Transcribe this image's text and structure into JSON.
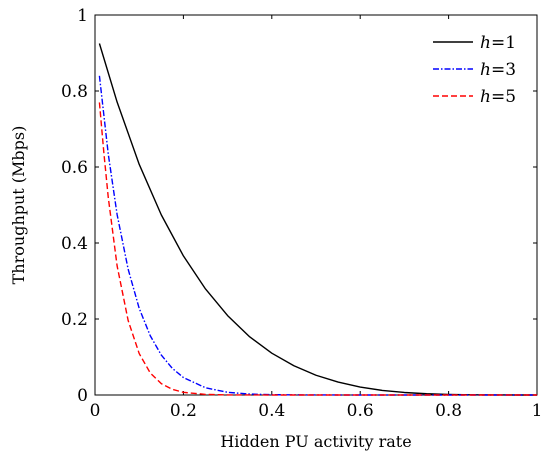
{
  "chart_data": {
    "type": "line",
    "title": "",
    "xlabel": "Hidden PU activity rate",
    "ylabel": "Throughput (Mbps)",
    "xlim": [
      0,
      1
    ],
    "ylim": [
      0,
      1
    ],
    "xticks": [
      0,
      0.2,
      0.4,
      0.6,
      0.8,
      1
    ],
    "xtick_labels": [
      "0",
      "0.2",
      "0.4",
      "0.6",
      "0.8",
      "1"
    ],
    "yticks": [
      0,
      0.2,
      0.4,
      0.6,
      0.8,
      1
    ],
    "ytick_labels": [
      "0",
      "0.2",
      "0.4",
      "0.6",
      "0.8",
      "1"
    ],
    "grid": false,
    "legend_position": "top-right",
    "series": [
      {
        "name": "h=1",
        "legend_var": "h",
        "legend_value": "=1",
        "color": "#000000",
        "dash": "solid",
        "x": [
          0.01,
          0.05,
          0.1,
          0.15,
          0.2,
          0.25,
          0.3,
          0.35,
          0.4,
          0.45,
          0.5,
          0.55,
          0.6,
          0.65,
          0.7,
          0.75,
          0.8,
          0.85,
          0.9,
          0.95,
          1.0
        ],
        "values": [
          0.925,
          0.771,
          0.607,
          0.474,
          0.366,
          0.279,
          0.209,
          0.153,
          0.11,
          0.077,
          0.052,
          0.034,
          0.021,
          0.012,
          0.0066,
          0.0033,
          0.0014,
          0.0005,
          0.00015,
          3e-05,
          0.0
        ]
      },
      {
        "name": "h=3",
        "legend_var": "h",
        "legend_value": "=3",
        "color": "#0000ff",
        "dash": "dashdot",
        "x": [
          0.01,
          0.03,
          0.05,
          0.075,
          0.1,
          0.125,
          0.15,
          0.175,
          0.2,
          0.25,
          0.3,
          0.35,
          0.4,
          0.5,
          0.6,
          0.8,
          1.0
        ],
        "values": [
          0.84,
          0.634,
          0.475,
          0.331,
          0.228,
          0.156,
          0.105,
          0.07,
          0.046,
          0.019,
          0.0071,
          0.0025,
          0.0008,
          5e-05,
          0.0,
          0.0,
          0.0
        ]
      },
      {
        "name": "h=5",
        "legend_var": "h",
        "legend_value": "=5",
        "color": "#ff0000",
        "dash": "dashed",
        "x": [
          0.01,
          0.02,
          0.03,
          0.05,
          0.075,
          0.1,
          0.125,
          0.15,
          0.175,
          0.2,
          0.25,
          0.3,
          0.4,
          0.5,
          0.6,
          0.8,
          1.0
        ],
        "values": [
          0.77,
          0.638,
          0.52,
          0.34,
          0.196,
          0.109,
          0.058,
          0.03,
          0.015,
          0.007,
          0.0016,
          0.0003,
          0.0,
          0.0,
          0.0,
          0.0,
          0.0
        ]
      }
    ]
  }
}
